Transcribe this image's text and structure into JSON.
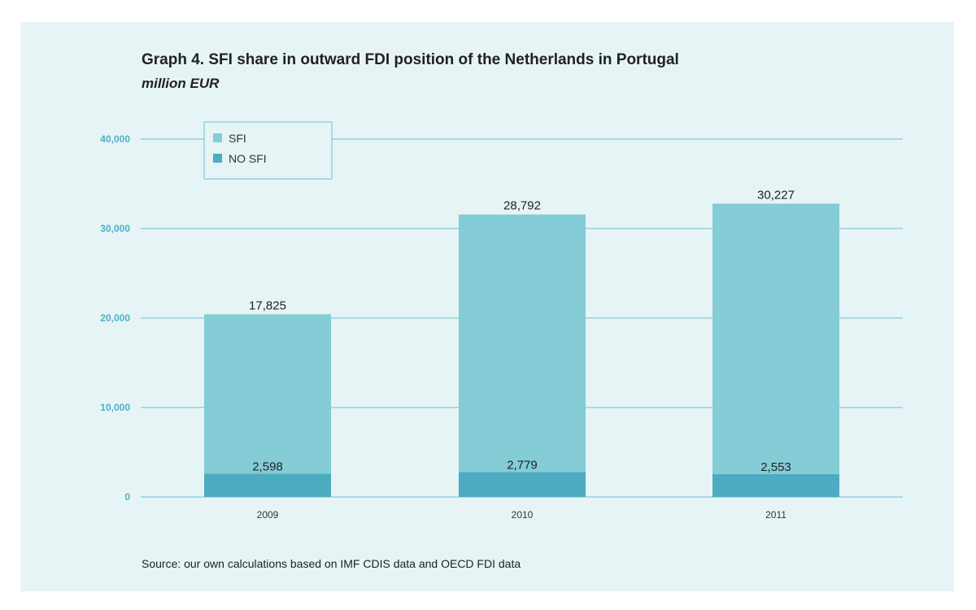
{
  "title": "Graph 4. SFI share in outward FDI position of the Netherlands in Portugal",
  "subtitle": "million EUR",
  "source": "Source: our own calculations based on IMF CDIS data and OECD FDI data",
  "colors": {
    "sfi": "#84ccd6",
    "no_sfi": "#4dabc2",
    "grid": "#6cc1d2",
    "background": "#e6f4f6"
  },
  "chart_data": {
    "type": "bar",
    "stacked": true,
    "categories": [
      "2009",
      "2010",
      "2011"
    ],
    "series": [
      {
        "name": "NO SFI",
        "values": [
          2598,
          2779,
          2553
        ],
        "labels": [
          "2,598",
          "2,779",
          "2,553"
        ]
      },
      {
        "name": "SFI",
        "values": [
          17825,
          28792,
          30227
        ],
        "labels": [
          "17,825",
          "28,792",
          "30,227"
        ]
      }
    ],
    "yticks": [
      0,
      10000,
      20000,
      30000,
      40000
    ],
    "ytick_labels": [
      "0",
      "10,000",
      "20,000",
      "30,000",
      "40,000"
    ],
    "ylim": [
      0,
      40000
    ],
    "grid": true,
    "legend_position": "top-left",
    "legend": [
      "SFI",
      "NO SFI"
    ]
  }
}
